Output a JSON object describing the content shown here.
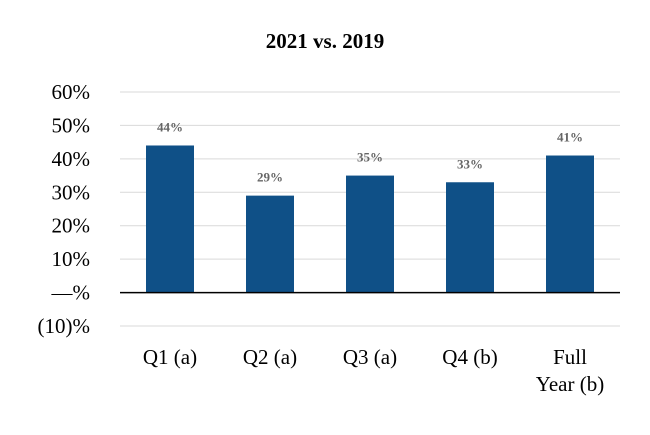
{
  "chart_data": {
    "type": "bar",
    "title": "2021 vs. 2019",
    "categories": [
      [
        "Q1 (a)"
      ],
      [
        "Q2 (a)"
      ],
      [
        "Q3 (a)"
      ],
      [
        "Q4 (b)"
      ],
      [
        "Full",
        "Year (b)"
      ]
    ],
    "values": [
      44,
      29,
      35,
      33,
      41
    ],
    "data_labels": [
      "44%",
      "29%",
      "35%",
      "33%",
      "41%"
    ],
    "y_ticks": [
      {
        "value": 60,
        "label": "60%"
      },
      {
        "value": 50,
        "label": "50%"
      },
      {
        "value": 40,
        "label": "40%"
      },
      {
        "value": 30,
        "label": "30%"
      },
      {
        "value": 20,
        "label": "20%"
      },
      {
        "value": 10,
        "label": "10%"
      },
      {
        "value": 0,
        "label": "—%"
      },
      {
        "value": -10,
        "label": "(10)%"
      }
    ],
    "ylim": [
      -10,
      60
    ],
    "xlabel": "",
    "ylabel": "",
    "grid": true,
    "legend": "none",
    "colors": {
      "bar": "#0f5087",
      "gridline": "#d9d9d9",
      "zero_line": "#000000",
      "data_label": "#666666"
    }
  }
}
